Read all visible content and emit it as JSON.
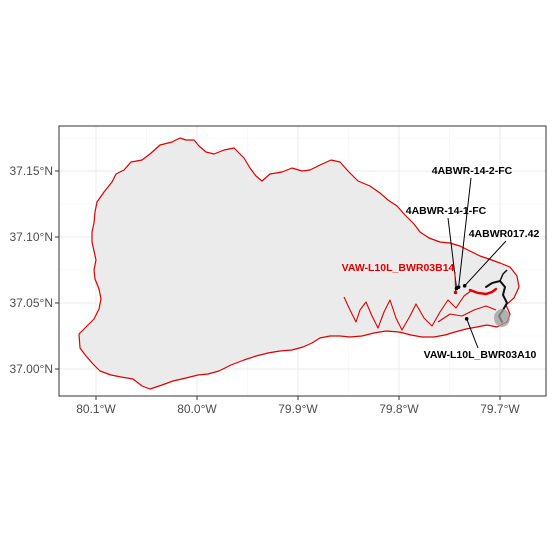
{
  "chart_data": {
    "type": "map",
    "x_axis": {
      "ticks": [
        {
          "value": -80.1,
          "label": "80.1°W"
        },
        {
          "value": -80.0,
          "label": "80.0°W"
        },
        {
          "value": -79.9,
          "label": "79.9°W"
        },
        {
          "value": -79.8,
          "label": "79.8°W"
        },
        {
          "value": -79.7,
          "label": "79.7°W"
        }
      ]
    },
    "y_axis": {
      "ticks": [
        {
          "value": 37.15,
          "label": "37.15°N"
        },
        {
          "value": 37.1,
          "label": "37.10°N"
        },
        {
          "value": 37.05,
          "label": "37.05°N"
        },
        {
          "value": 37.0,
          "label": "37.00°N"
        }
      ]
    },
    "grid": true,
    "watershed": {
      "fill": "#ebebeb",
      "outline_color": "#e00000"
    },
    "stations": [
      {
        "label": "4ABWR-14-2-FC",
        "lon": -79.741,
        "lat": 37.062,
        "color": "#000000"
      },
      {
        "label": "4ABWR-14-1-FC",
        "lon": -79.743,
        "lat": 37.061,
        "color": "#000000"
      },
      {
        "label": "4ABWR017.42",
        "lon": -79.735,
        "lat": 37.063,
        "color": "#000000"
      },
      {
        "label": "VAW-L10L_BWR03B14",
        "lon": -79.744,
        "lat": 37.058,
        "color": "#e00000"
      },
      {
        "label": "VAW-L10L_BWR03A10",
        "lon": -79.733,
        "lat": 37.038,
        "color": "#000000"
      }
    ]
  }
}
